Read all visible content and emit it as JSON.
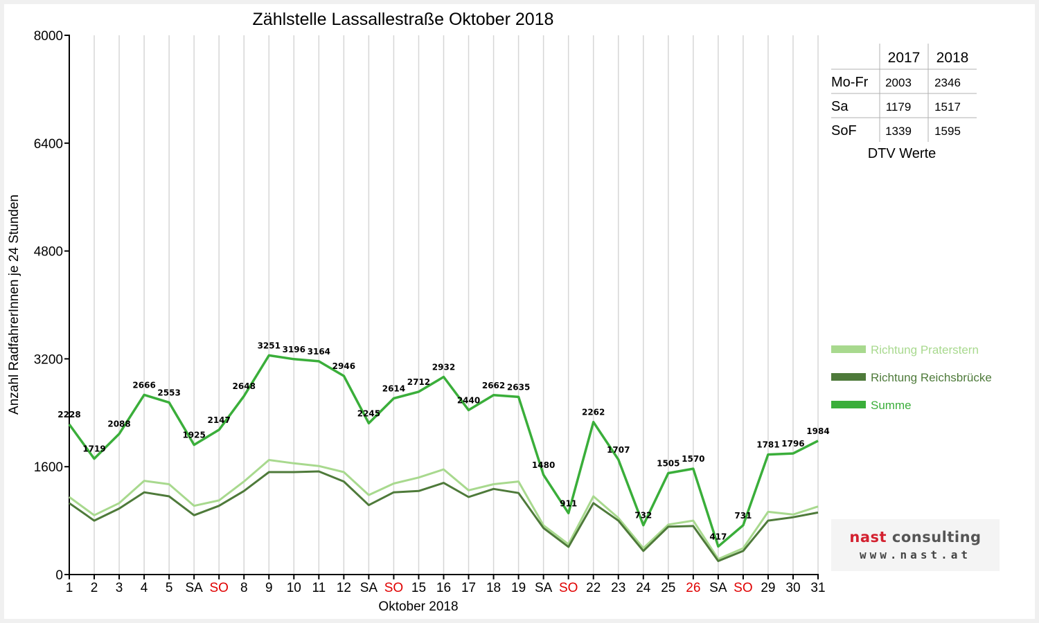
{
  "chart_data": {
    "type": "line",
    "title": "Zählstelle Lassallestraße Oktober 2018",
    "xlabel": "Oktober 2018",
    "ylabel": "Anzahl RadfahrerInnen je 24 Stunden",
    "ylim": [
      0,
      8000
    ],
    "yticks": [
      0,
      1600,
      3200,
      4800,
      6400,
      8000
    ],
    "grid": true,
    "legend_position": "right",
    "categories": [
      "1",
      "2",
      "3",
      "4",
      "5",
      "SA",
      "SO",
      "8",
      "9",
      "10",
      "11",
      "12",
      "SA",
      "SO",
      "15",
      "16",
      "17",
      "18",
      "19",
      "SA",
      "SO",
      "22",
      "23",
      "24",
      "25",
      "26",
      "SA",
      "SO",
      "29",
      "30",
      "31"
    ],
    "red_categories": [
      6,
      13,
      20,
      25,
      27
    ],
    "series": [
      {
        "name": "Richtung Praterstern",
        "color": "#a8d98e",
        "values": [
          1150,
          880,
          1060,
          1390,
          1340,
          1020,
          1100,
          1380,
          1700,
          1650,
          1610,
          1520,
          1180,
          1350,
          1440,
          1560,
          1250,
          1340,
          1380,
          730,
          450,
          1160,
          840,
          390,
          740,
          800,
          230,
          390,
          930,
          890,
          1010
        ]
      },
      {
        "name": "Richtung Reichsbrücke",
        "color": "#4e7a3a",
        "values": [
          1060,
          800,
          980,
          1220,
          1160,
          880,
          1020,
          1240,
          1520,
          1520,
          1530,
          1380,
          1030,
          1220,
          1240,
          1360,
          1150,
          1270,
          1210,
          690,
          410,
          1060,
          800,
          350,
          710,
          720,
          200,
          350,
          800,
          850,
          920
        ]
      },
      {
        "name": "Summe",
        "color": "#3aae3a",
        "values": [
          2228,
          1719,
          2088,
          2666,
          2553,
          1925,
          2147,
          2648,
          3251,
          3196,
          3164,
          2946,
          2245,
          2614,
          2712,
          2932,
          2440,
          2662,
          2635,
          1480,
          911,
          2262,
          1707,
          732,
          1505,
          1570,
          417,
          731,
          1781,
          1796,
          1984
        ]
      }
    ]
  },
  "dtv_table": {
    "headers": [
      "",
      "2017",
      "2018"
    ],
    "rows": [
      [
        "Mo-Fr",
        "2003",
        "2346"
      ],
      [
        "Sa",
        "1179",
        "1517"
      ],
      [
        "SoF",
        "1339",
        "1595"
      ]
    ],
    "caption": "DTV Werte"
  },
  "logo": {
    "name_part1": "nast",
    "name_part2": " consulting",
    "url": "www.nast.at"
  }
}
